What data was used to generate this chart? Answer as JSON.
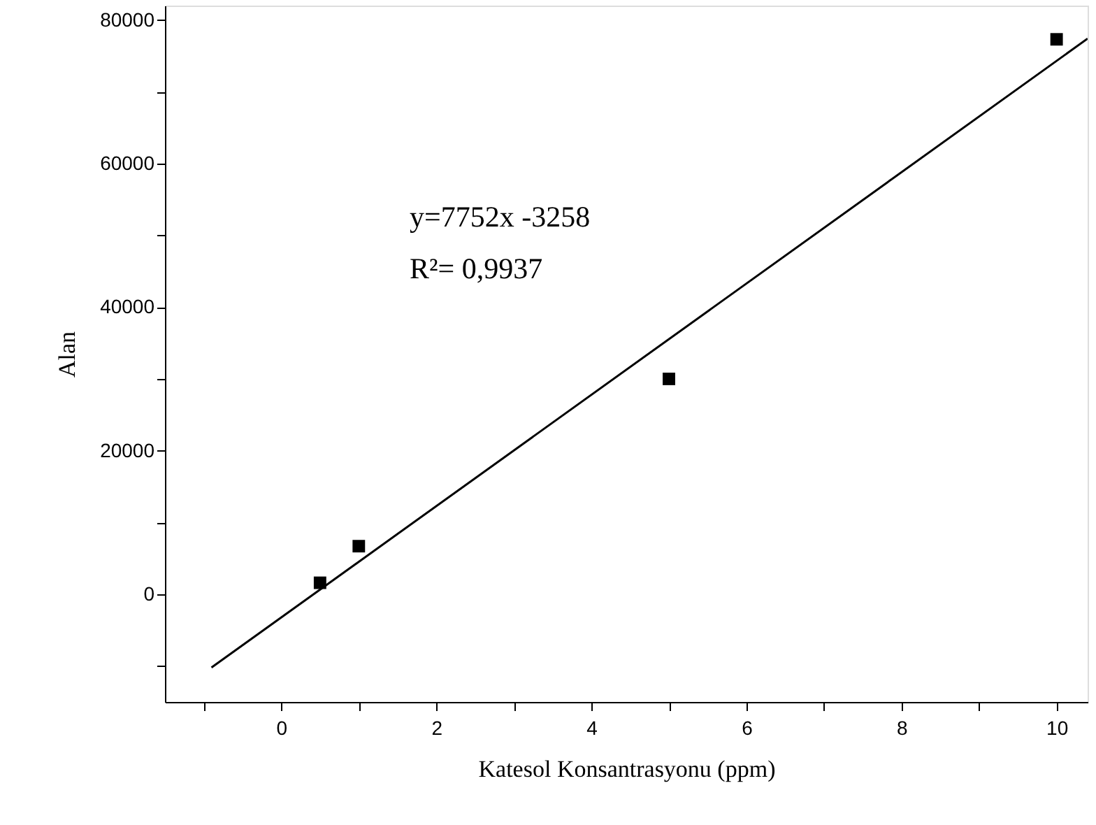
{
  "chart_data": {
    "type": "scatter",
    "xlabel": "Katesol Konsantrasyonu (ppm)",
    "ylabel": "Alan",
    "x": [
      0.5,
      1,
      5,
      10
    ],
    "series": [
      {
        "color": "#000000",
        "marker": "square",
        "values": [
          1600,
          6700,
          30000,
          77300
        ]
      },
      {
        "type": "line",
        "color": "#000000",
        "line_style": "solid",
        "x": [
          -0.9,
          10.4
        ],
        "values": [
          -10200,
          77400
        ]
      }
    ],
    "xlim": [
      -1.5,
      10.4
    ],
    "ylim": [
      -15000,
      82000
    ],
    "xticks": [
      {
        "value": -1,
        "label": null
      },
      0,
      {
        "value": 1,
        "label": null
      },
      2,
      {
        "value": 3,
        "label": null
      },
      4,
      {
        "value": 5,
        "label": null
      },
      6,
      {
        "value": 7,
        "label": null
      },
      8,
      {
        "value": 9,
        "label": null
      },
      10
    ],
    "yticks": [
      {
        "value": -10000,
        "label": null
      },
      0,
      {
        "value": 10000,
        "label": null
      },
      20000,
      {
        "value": 30000,
        "label": null
      },
      40000,
      {
        "value": 50000,
        "label": null
      },
      60000,
      {
        "value": 70000,
        "label": null
      },
      80000
    ],
    "annotations": [
      "y=7752x -3258",
      "R²= 0,9937"
    ],
    "grid": false
  }
}
